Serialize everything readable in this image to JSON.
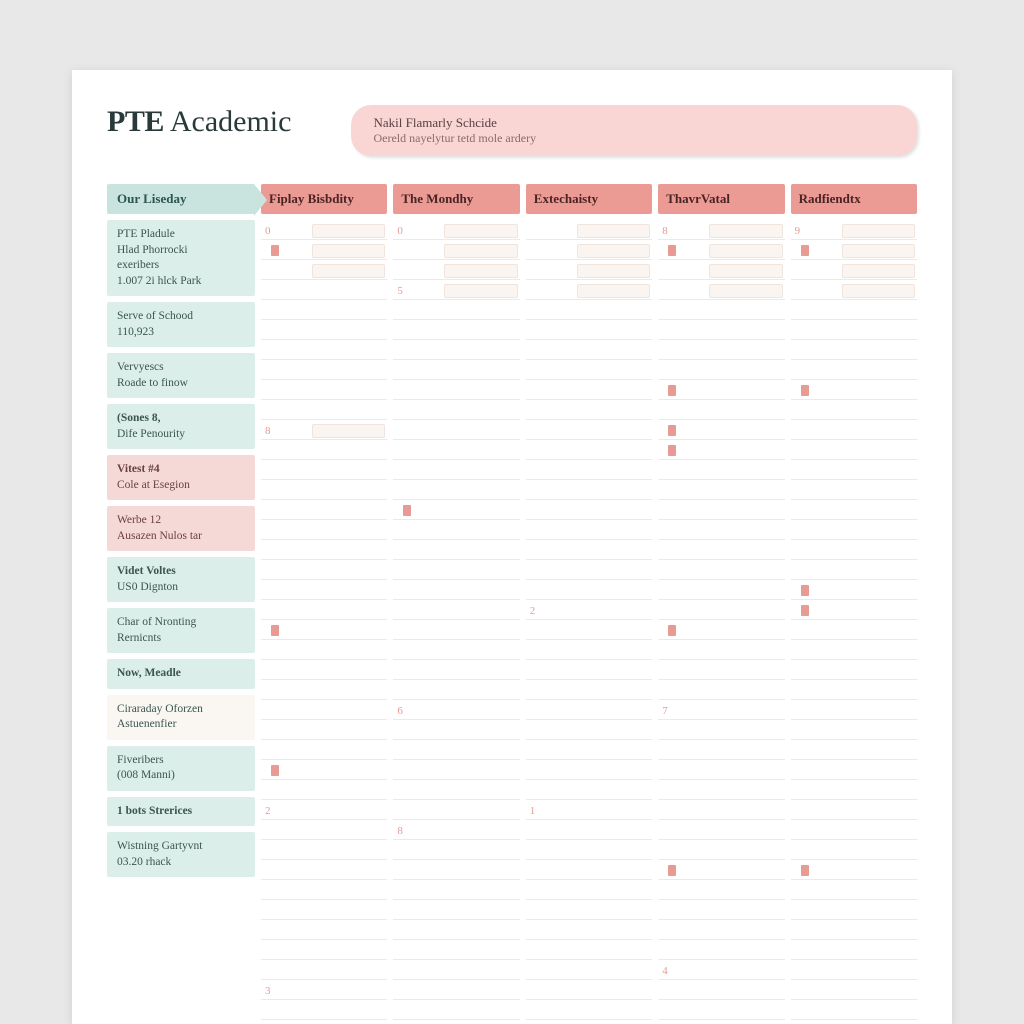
{
  "header": {
    "title_bold": "PTE",
    "title_light": "Academic",
    "pill_line1": "Nakil Flamarly Schcide",
    "pill_line2": "Oereld nayelytur tetd mole ardery"
  },
  "colors": {
    "page_bg": "#e8e8e8",
    "paper": "#ffffff",
    "mint": "#c9e4df",
    "mint_light": "#dceee9",
    "salmon": "#ec9b94",
    "salmon_light": "#f5d9d6",
    "text_dark": "#2a3a3a",
    "accent_text": "#e89a94"
  },
  "columns": [
    "Fiplay Bisbdity",
    "The Mondhy",
    "Extechaisty",
    "ThavrVatal",
    "Radfiendtx"
  ],
  "row_header": "Our Liseday",
  "side_items": [
    {
      "variant": "mint",
      "lines": [
        {
          "t": "PTE Pladule",
          "b": false
        },
        {
          "t": "Hlad Phorrocki",
          "b": false
        },
        {
          "t": "exeribers",
          "b": false
        },
        {
          "t": "1.007 2i hlck Park",
          "b": false
        }
      ]
    },
    {
      "variant": "mint",
      "lines": [
        {
          "t": "Serve of Schood",
          "b": false
        },
        {
          "t": "110,923",
          "b": false
        }
      ]
    },
    {
      "variant": "mint",
      "lines": [
        {
          "t": "Vervyescs",
          "b": false
        },
        {
          "t": "Roade to finow",
          "b": false
        }
      ]
    },
    {
      "variant": "mint",
      "lines": [
        {
          "t": "(Sones 8,",
          "b": true
        },
        {
          "t": "Dife Penourity",
          "b": false
        }
      ]
    },
    {
      "variant": "pink",
      "lines": [
        {
          "t": "Vitest #4",
          "b": true
        },
        {
          "t": "Cole at Esegion",
          "b": false
        }
      ]
    },
    {
      "variant": "pink",
      "lines": [
        {
          "t": "Werbe 12",
          "b": false
        },
        {
          "t": "Ausazen Nulos tar",
          "b": false
        }
      ]
    },
    {
      "variant": "mint",
      "lines": [
        {
          "t": "Videt Voltes",
          "b": true
        },
        {
          "t": "US0 Dignton",
          "b": false
        }
      ]
    },
    {
      "variant": "mint",
      "lines": [
        {
          "t": "Char of Nronting",
          "b": false
        },
        {
          "t": "Rernicnts",
          "b": false
        }
      ]
    },
    {
      "variant": "mint",
      "lines": [
        {
          "t": "Now, Meadle",
          "b": true
        }
      ]
    },
    {
      "variant": "white",
      "lines": [
        {
          "t": "Ciraraday Oforzen",
          "b": false
        },
        {
          "t": "Astuenenfier",
          "b": false
        }
      ]
    },
    {
      "variant": "mint",
      "lines": [
        {
          "t": "Fiveribers",
          "b": false
        },
        {
          "t": "(008 Manni)",
          "b": false
        }
      ]
    },
    {
      "variant": "mint",
      "lines": [
        {
          "t": "1 bots Strerices",
          "b": true
        }
      ]
    },
    {
      "variant": "mint",
      "lines": [
        {
          "t": "Wistning Gartyvnt",
          "b": false
        },
        {
          "t": "03.20  rhack",
          "b": false
        }
      ]
    }
  ],
  "day_columns": [
    {
      "slots": [
        {
          "num": "0",
          "box": true
        },
        {
          "num": "",
          "mark": true,
          "box": true
        },
        {
          "num": "",
          "box": true
        },
        {
          "num": ""
        },
        {
          "num": ""
        },
        {
          "num": ""
        },
        {
          "num": ""
        },
        {
          "num": ""
        },
        {
          "num": ""
        },
        {
          "num": ""
        },
        {
          "num": "8",
          "box": true
        },
        {
          "num": ""
        },
        {
          "num": ""
        },
        {
          "num": ""
        },
        {
          "num": ""
        },
        {
          "num": ""
        },
        {
          "num": ""
        },
        {
          "num": ""
        },
        {
          "num": ""
        },
        {
          "num": ""
        },
        {
          "num": "",
          "mark": true
        },
        {
          "num": ""
        },
        {
          "num": ""
        },
        {
          "num": ""
        },
        {
          "num": ""
        },
        {
          "num": ""
        },
        {
          "num": ""
        },
        {
          "num": "",
          "mark": true
        },
        {
          "num": ""
        },
        {
          "num": "2"
        },
        {
          "num": ""
        },
        {
          "num": ""
        },
        {
          "num": ""
        },
        {
          "num": ""
        },
        {
          "num": ""
        },
        {
          "num": ""
        },
        {
          "num": ""
        },
        {
          "num": ""
        },
        {
          "num": "3"
        },
        {
          "num": ""
        }
      ]
    },
    {
      "slots": [
        {
          "num": "0",
          "box": true
        },
        {
          "num": "",
          "box": true
        },
        {
          "num": "",
          "box": true
        },
        {
          "num": "5",
          "box": true
        },
        {
          "num": ""
        },
        {
          "num": ""
        },
        {
          "num": ""
        },
        {
          "num": ""
        },
        {
          "num": ""
        },
        {
          "num": ""
        },
        {
          "num": ""
        },
        {
          "num": ""
        },
        {
          "num": ""
        },
        {
          "num": ""
        },
        {
          "num": "",
          "mark": true
        },
        {
          "num": ""
        },
        {
          "num": ""
        },
        {
          "num": ""
        },
        {
          "num": ""
        },
        {
          "num": ""
        },
        {
          "num": ""
        },
        {
          "num": ""
        },
        {
          "num": ""
        },
        {
          "num": ""
        },
        {
          "num": "6"
        },
        {
          "num": ""
        },
        {
          "num": ""
        },
        {
          "num": ""
        },
        {
          "num": ""
        },
        {
          "num": ""
        },
        {
          "num": "8"
        },
        {
          "num": ""
        },
        {
          "num": ""
        },
        {
          "num": ""
        },
        {
          "num": ""
        },
        {
          "num": ""
        },
        {
          "num": ""
        },
        {
          "num": ""
        },
        {
          "num": ""
        },
        {
          "num": ""
        }
      ]
    },
    {
      "slots": [
        {
          "num": "",
          "box": true
        },
        {
          "num": "",
          "box": true
        },
        {
          "num": "",
          "box": true
        },
        {
          "num": "",
          "box": true
        },
        {
          "num": ""
        },
        {
          "num": ""
        },
        {
          "num": ""
        },
        {
          "num": ""
        },
        {
          "num": ""
        },
        {
          "num": ""
        },
        {
          "num": ""
        },
        {
          "num": ""
        },
        {
          "num": ""
        },
        {
          "num": ""
        },
        {
          "num": ""
        },
        {
          "num": ""
        },
        {
          "num": ""
        },
        {
          "num": ""
        },
        {
          "num": ""
        },
        {
          "num": "2"
        },
        {
          "num": ""
        },
        {
          "num": ""
        },
        {
          "num": ""
        },
        {
          "num": ""
        },
        {
          "num": ""
        },
        {
          "num": ""
        },
        {
          "num": ""
        },
        {
          "num": ""
        },
        {
          "num": ""
        },
        {
          "num": "1"
        },
        {
          "num": ""
        },
        {
          "num": ""
        },
        {
          "num": ""
        },
        {
          "num": ""
        },
        {
          "num": ""
        },
        {
          "num": ""
        },
        {
          "num": ""
        },
        {
          "num": ""
        },
        {
          "num": ""
        },
        {
          "num": ""
        }
      ]
    },
    {
      "slots": [
        {
          "num": "8",
          "box": true
        },
        {
          "num": "",
          "mark": true,
          "box": true
        },
        {
          "num": "",
          "box": true
        },
        {
          "num": "",
          "box": true
        },
        {
          "num": ""
        },
        {
          "num": ""
        },
        {
          "num": ""
        },
        {
          "num": ""
        },
        {
          "num": "",
          "mark": true
        },
        {
          "num": ""
        },
        {
          "num": "",
          "mark": true
        },
        {
          "num": "",
          "mark": true
        },
        {
          "num": ""
        },
        {
          "num": ""
        },
        {
          "num": ""
        },
        {
          "num": ""
        },
        {
          "num": ""
        },
        {
          "num": ""
        },
        {
          "num": ""
        },
        {
          "num": ""
        },
        {
          "num": "",
          "mark": true
        },
        {
          "num": ""
        },
        {
          "num": ""
        },
        {
          "num": ""
        },
        {
          "num": "7"
        },
        {
          "num": ""
        },
        {
          "num": ""
        },
        {
          "num": ""
        },
        {
          "num": ""
        },
        {
          "num": ""
        },
        {
          "num": ""
        },
        {
          "num": ""
        },
        {
          "num": "",
          "mark": true
        },
        {
          "num": ""
        },
        {
          "num": ""
        },
        {
          "num": ""
        },
        {
          "num": ""
        },
        {
          "num": "4"
        },
        {
          "num": ""
        },
        {
          "num": ""
        }
      ]
    },
    {
      "slots": [
        {
          "num": "9",
          "box": true
        },
        {
          "num": "",
          "mark": true,
          "box": true
        },
        {
          "num": "",
          "box": true
        },
        {
          "num": "",
          "box": true
        },
        {
          "num": ""
        },
        {
          "num": ""
        },
        {
          "num": ""
        },
        {
          "num": ""
        },
        {
          "num": "",
          "mark": true
        },
        {
          "num": ""
        },
        {
          "num": ""
        },
        {
          "num": ""
        },
        {
          "num": ""
        },
        {
          "num": ""
        },
        {
          "num": ""
        },
        {
          "num": ""
        },
        {
          "num": ""
        },
        {
          "num": ""
        },
        {
          "num": "",
          "mark": true
        },
        {
          "num": "",
          "mark": true
        },
        {
          "num": ""
        },
        {
          "num": ""
        },
        {
          "num": ""
        },
        {
          "num": ""
        },
        {
          "num": ""
        },
        {
          "num": ""
        },
        {
          "num": ""
        },
        {
          "num": ""
        },
        {
          "num": ""
        },
        {
          "num": ""
        },
        {
          "num": ""
        },
        {
          "num": ""
        },
        {
          "num": "",
          "mark": true
        },
        {
          "num": ""
        },
        {
          "num": ""
        },
        {
          "num": ""
        },
        {
          "num": ""
        },
        {
          "num": ""
        },
        {
          "num": ""
        },
        {
          "num": ""
        }
      ]
    }
  ]
}
